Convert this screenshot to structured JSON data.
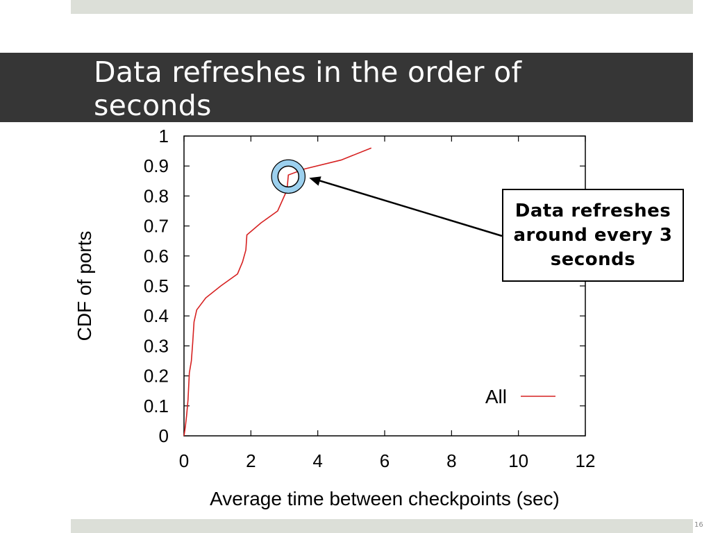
{
  "slide": {
    "title": "Data refreshes in the order of seconds",
    "page_number": "16"
  },
  "chart_data": {
    "type": "line",
    "xlabel": "Average time between checkpoints (sec)",
    "ylabel": "CDF of ports",
    "xlim": [
      0,
      12
    ],
    "ylim": [
      0,
      1
    ],
    "x_ticks": [
      "0",
      "2",
      "4",
      "6",
      "8",
      "10",
      "12"
    ],
    "y_ticks": [
      "0",
      "0.1",
      "0.2",
      "0.3",
      "0.4",
      "0.5",
      "0.6",
      "0.7",
      "0.8",
      "0.9",
      "1"
    ],
    "grid": false,
    "legend_position": "bottom-right",
    "series": [
      {
        "name": "All",
        "color": "#d62020",
        "points": [
          [
            0.0,
            0.0
          ],
          [
            0.04,
            0.03
          ],
          [
            0.08,
            0.07
          ],
          [
            0.12,
            0.12
          ],
          [
            0.16,
            0.21
          ],
          [
            0.22,
            0.25
          ],
          [
            0.26,
            0.31
          ],
          [
            0.3,
            0.38
          ],
          [
            0.38,
            0.42
          ],
          [
            0.65,
            0.46
          ],
          [
            1.1,
            0.5
          ],
          [
            1.6,
            0.54
          ],
          [
            1.75,
            0.58
          ],
          [
            1.85,
            0.62
          ],
          [
            1.88,
            0.67
          ],
          [
            2.3,
            0.71
          ],
          [
            2.8,
            0.75
          ],
          [
            3.08,
            0.82
          ],
          [
            3.12,
            0.87
          ],
          [
            3.6,
            0.89
          ],
          [
            4.7,
            0.92
          ],
          [
            5.6,
            0.96
          ]
        ]
      }
    ],
    "annotations": {
      "callout_text": "Data refreshes around every 3 seconds",
      "circle_at": [
        3.12,
        0.865
      ]
    }
  }
}
